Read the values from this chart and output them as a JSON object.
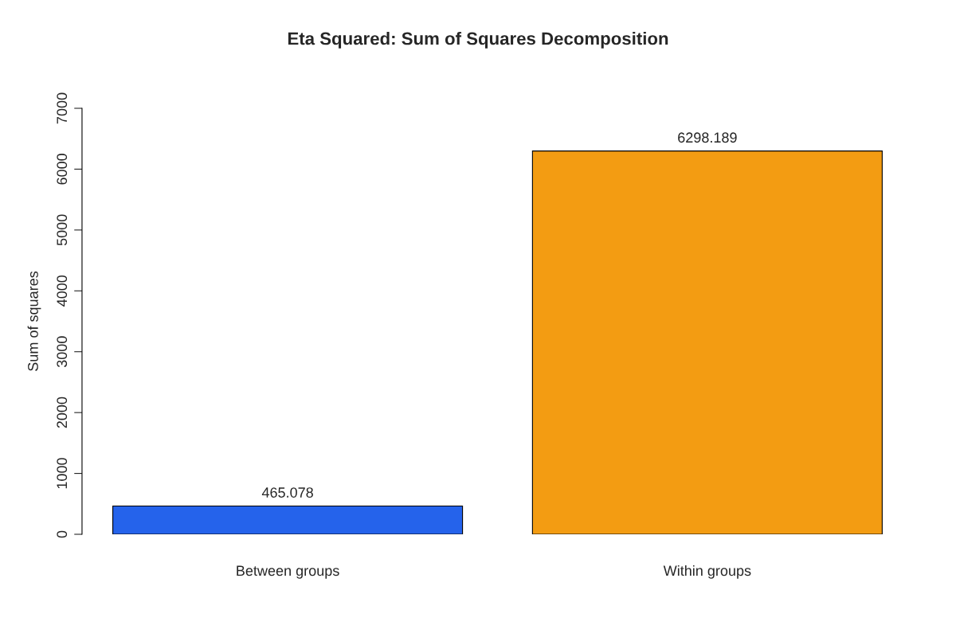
{
  "chart_data": {
    "type": "bar",
    "title": "Eta Squared: Sum of Squares Decomposition",
    "ylabel": "Sum of squares",
    "categories": [
      "Between groups",
      "Within groups"
    ],
    "values": [
      465.078,
      6298.189
    ],
    "colors": [
      "#2563eb",
      "#f39c12"
    ],
    "ylim": [
      0,
      7000
    ],
    "yticks": [
      0,
      1000,
      2000,
      3000,
      4000,
      5000,
      6000,
      7000
    ],
    "data_labels": true,
    "grid": false,
    "legend": false
  }
}
